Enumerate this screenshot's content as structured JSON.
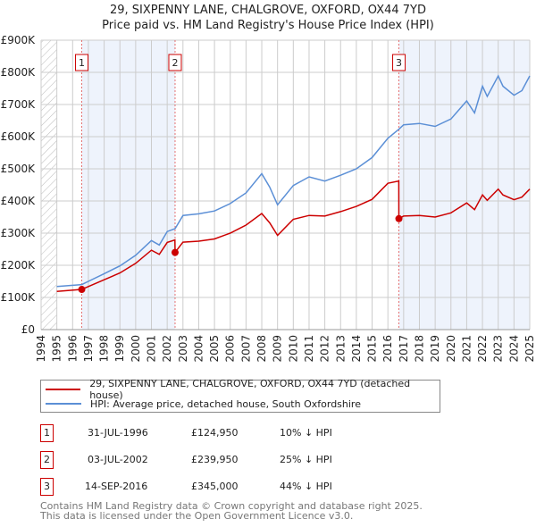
{
  "chart_data": {
    "type": "line",
    "title": "29, SIXPENNY LANE, CHALGROVE, OXFORD, OX44 7YD",
    "subtitle": "Price paid vs. HM Land Registry's House Price Index (HPI)",
    "xlim": [
      1994,
      2025
    ],
    "ylim": [
      0,
      900000
    ],
    "x_ticks": [
      "1994",
      "1995",
      "1996",
      "1997",
      "1998",
      "1999",
      "2000",
      "2001",
      "2002",
      "2003",
      "2004",
      "2005",
      "2006",
      "2007",
      "2008",
      "2009",
      "2010",
      "2011",
      "2012",
      "2013",
      "2014",
      "2015",
      "2016",
      "2017",
      "2018",
      "2019",
      "2020",
      "2021",
      "2022",
      "2023",
      "2024",
      "2025"
    ],
    "y_ticks": [
      {
        "v": 0,
        "label": "£0"
      },
      {
        "v": 100000,
        "label": "£100K"
      },
      {
        "v": 200000,
        "label": "£200K"
      },
      {
        "v": 300000,
        "label": "£300K"
      },
      {
        "v": 400000,
        "label": "£400K"
      },
      {
        "v": 500000,
        "label": "£500K"
      },
      {
        "v": 600000,
        "label": "£600K"
      },
      {
        "v": 700000,
        "label": "£700K"
      },
      {
        "v": 800000,
        "label": "£800K"
      },
      {
        "v": 900000,
        "label": "£900K"
      }
    ],
    "grid": true,
    "series": [
      {
        "name": "29, SIXPENNY LANE, CHALGROVE, OXFORD, OX44 7YD (detached house)",
        "color": "#cc0000",
        "x": [
          1995,
          1996.58,
          1997,
          1998,
          1999,
          2000,
          2001,
          2001.5,
          2002,
          2002.49,
          2002.5,
          2003,
          2004,
          2005,
          2006,
          2007,
          2008,
          2008.5,
          2009,
          2010,
          2011,
          2012,
          2013,
          2014,
          2015,
          2016,
          2016.69,
          2016.7,
          2017,
          2018,
          2019,
          2020,
          2021,
          2021.5,
          2022,
          2022.3,
          2023,
          2023.3,
          2024,
          2024.5,
          2025
        ],
        "y": [
          119000,
          124950,
          134000,
          155000,
          176000,
          206000,
          247000,
          234000,
          271000,
          279000,
          239950,
          272000,
          275000,
          282000,
          300000,
          325000,
          361000,
          332000,
          293000,
          343000,
          355000,
          353000,
          367000,
          383000,
          405000,
          455000,
          462000,
          345000,
          353000,
          355000,
          350000,
          363000,
          394000,
          373000,
          419000,
          402000,
          437000,
          419000,
          404000,
          412000,
          437000
        ]
      },
      {
        "name": "HPI: Average price, detached house, South Oxfordshire",
        "color": "#5b8fd6",
        "x": [
          1995,
          1996.58,
          1997,
          1998,
          1999,
          2000,
          2001,
          2001.5,
          2002,
          2002.5,
          2003,
          2004,
          2005,
          2006,
          2007,
          2008,
          2008.5,
          2009,
          2010,
          2011,
          2012,
          2013,
          2014,
          2015,
          2016,
          2016.7,
          2017,
          2018,
          2019,
          2020,
          2021,
          2021.5,
          2022,
          2022.3,
          2023,
          2023.3,
          2024,
          2024.5,
          2025
        ],
        "y": [
          134000,
          140000,
          150000,
          174000,
          198000,
          231000,
          277000,
          263000,
          305000,
          314000,
          355000,
          360000,
          369000,
          392000,
          425000,
          485000,
          443000,
          388000,
          448000,
          475000,
          462000,
          480000,
          500000,
          535000,
          595000,
          623000,
          637000,
          641000,
          632000,
          655000,
          711000,
          674000,
          757000,
          725000,
          789000,
          757000,
          729000,
          743000,
          789000
        ]
      }
    ],
    "sales": [
      {
        "n": "1",
        "x": 1996.58,
        "date": "31-JUL-1996",
        "price": "£124,950",
        "value": 124950,
        "hpi": "10% ↓ HPI"
      },
      {
        "n": "2",
        "x": 2002.5,
        "date": "03-JUL-2002",
        "price": "£239,950",
        "value": 239950,
        "hpi": "25% ↓ HPI"
      },
      {
        "n": "3",
        "x": 2016.7,
        "date": "14-SEP-2016",
        "price": "£345,000",
        "value": 345000,
        "hpi": "44% ↓ HPI"
      }
    ],
    "legend_position": "below"
  },
  "footer": {
    "line1": "Contains HM Land Registry data © Crown copyright and database right 2025.",
    "line2": "This data is licensed under the Open Government Licence v3.0."
  }
}
